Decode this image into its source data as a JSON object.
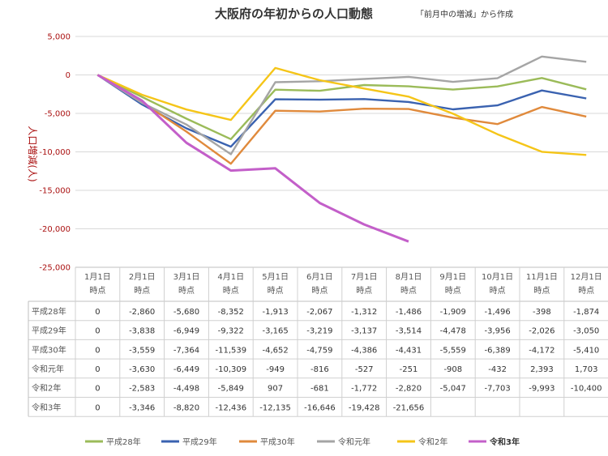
{
  "chart_data": {
    "type": "line",
    "title": "大阪府の年初からの人口動態",
    "subtitle": "「前月中の増減」から作成",
    "ylabel": "人口増減(人)",
    "ylim": [
      -25000,
      5000
    ],
    "yticks": [
      5000,
      0,
      -5000,
      -10000,
      -15000,
      -20000,
      -25000
    ],
    "ytick_labels": [
      "5,000",
      "0",
      "-5,000",
      "-10,000",
      "-15,000",
      "-20,000",
      "-25,000"
    ],
    "grid": true,
    "legend_position": "bottom",
    "categories": [
      [
        "1月1日",
        "時点"
      ],
      [
        "2月1日",
        "時点"
      ],
      [
        "3月1日",
        "時点"
      ],
      [
        "4月1日",
        "時点"
      ],
      [
        "5月1日",
        "時点"
      ],
      [
        "6月1日",
        "時点"
      ],
      [
        "7月1日",
        "時点"
      ],
      [
        "8月1日",
        "時点"
      ],
      [
        "9月1日",
        "時点"
      ],
      [
        "10月1日",
        "時点"
      ],
      [
        "11月1日",
        "時点"
      ],
      [
        "12月1日",
        "時点"
      ]
    ],
    "series": [
      {
        "name": "平成28年",
        "color": "#9bbb59",
        "bold": false,
        "values": [
          0,
          -2860,
          -5680,
          -8352,
          -1913,
          -2067,
          -1312,
          -1486,
          -1909,
          -1496,
          -398,
          -1874
        ],
        "labels": [
          "0",
          "-2,860",
          "-5,680",
          "-8,352",
          "-1,913",
          "-2,067",
          "-1,312",
          "-1,486",
          "-1,909",
          "-1,496",
          "-398",
          "-1,874"
        ]
      },
      {
        "name": "平成29年",
        "color": "#3a62b0",
        "bold": false,
        "values": [
          0,
          -3838,
          -6949,
          -9322,
          -3165,
          -3219,
          -3137,
          -3514,
          -4478,
          -3956,
          -2026,
          -3050
        ],
        "labels": [
          "0",
          "-3,838",
          "-6,949",
          "-9,322",
          "-3,165",
          "-3,219",
          "-3,137",
          "-3,514",
          "-4,478",
          "-3,956",
          "-2,026",
          "-3,050"
        ]
      },
      {
        "name": "平成30年",
        "color": "#e08a3c",
        "bold": false,
        "values": [
          0,
          -3559,
          -7364,
          -11539,
          -4652,
          -4759,
          -4386,
          -4431,
          -5559,
          -6389,
          -4172,
          -5410
        ],
        "labels": [
          "0",
          "-3,559",
          "-7,364",
          "-11,539",
          "-4,652",
          "-4,759",
          "-4,386",
          "-4,431",
          "-5,559",
          "-6,389",
          "-4,172",
          "-5,410"
        ]
      },
      {
        "name": "令和元年",
        "color": "#a5a5a5",
        "bold": false,
        "values": [
          0,
          -3630,
          -6449,
          -10309,
          -949,
          -816,
          -527,
          -251,
          -908,
          -432,
          2393,
          1703
        ],
        "labels": [
          "0",
          "-3,630",
          "-6,449",
          "-10,309",
          "-949",
          "-816",
          "-527",
          "-251",
          "-908",
          "-432",
          "2,393",
          "1,703"
        ]
      },
      {
        "name": "令和2年",
        "color": "#f5c518",
        "bold": false,
        "values": [
          0,
          -2583,
          -4498,
          -5849,
          907,
          -681,
          -1772,
          -2820,
          -5047,
          -7703,
          -9993,
          -10400
        ],
        "labels": [
          "0",
          "-2,583",
          "-4,498",
          "-5,849",
          "907",
          "-681",
          "-1,772",
          "-2,820",
          "-5,047",
          "-7,703",
          "-9,993",
          "-10,400"
        ]
      },
      {
        "name": "令和3年",
        "color": "#c35fc9",
        "bold": true,
        "values": [
          0,
          -3346,
          -8820,
          -12436,
          -12135,
          -16646,
          -19428,
          -21656,
          null,
          null,
          null,
          null
        ],
        "labels": [
          "0",
          "-3,346",
          "-8,820",
          "-12,436",
          "-12,135",
          "-16,646",
          "-19,428",
          "-21,656",
          "",
          "",
          "",
          ""
        ]
      }
    ]
  }
}
